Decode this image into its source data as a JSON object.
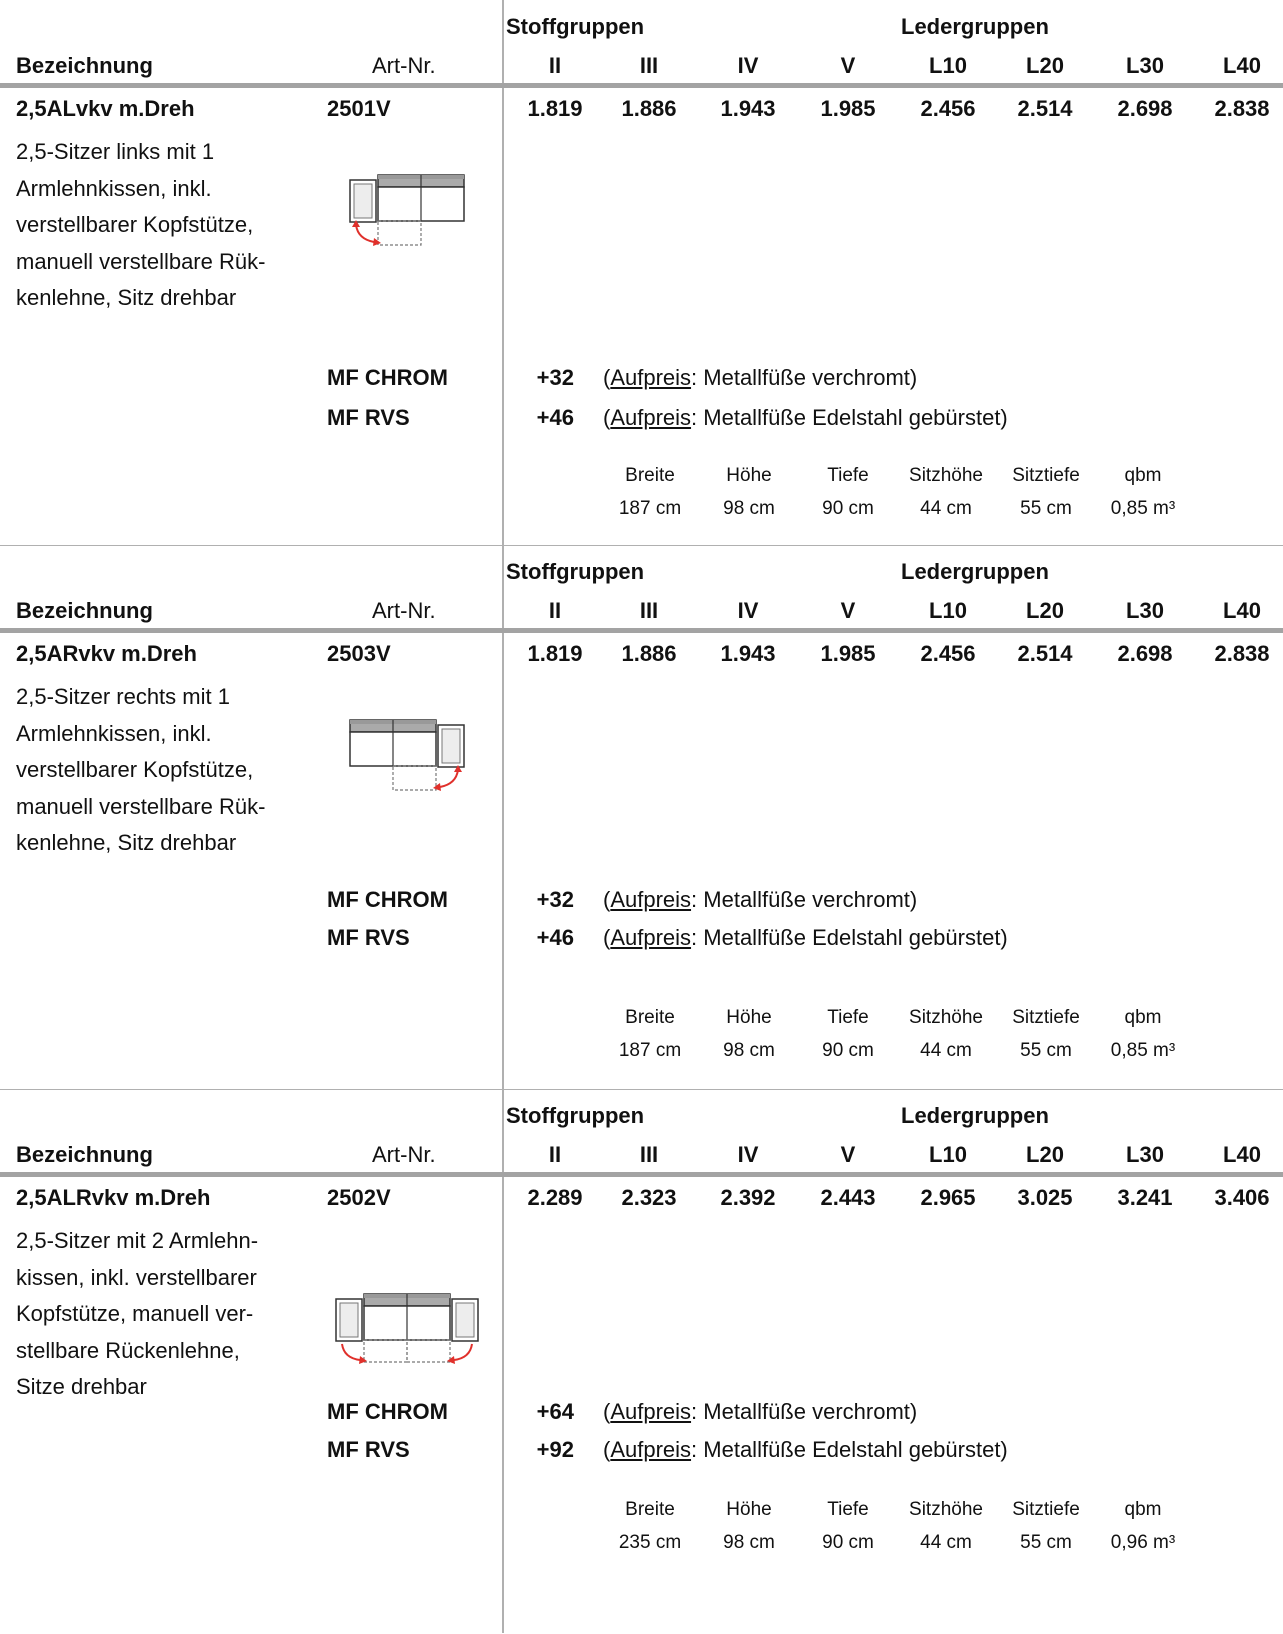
{
  "headers": {
    "stoff_label": "Stoffgruppen",
    "leder_label": "Ledergruppen",
    "bezeichnung": "Bezeichnung",
    "artnr": "Art-Nr.",
    "groups": [
      "II",
      "III",
      "IV",
      "V",
      "L10",
      "L20",
      "L30",
      "L40"
    ]
  },
  "dimension_labels": [
    "Breite",
    "Höhe",
    "Tiefe",
    "Sitzhöhe",
    "Sitztiefe",
    "qbm"
  ],
  "options_common": {
    "aufpreis": "Aufpreis",
    "open_paren": "(",
    "chrom_suffix": ": Metallfüße verchromt)",
    "rvs_suffix": ": Metallfüße Edelstahl gebürstet)"
  },
  "products": [
    {
      "name": "2,5ALvkv m.Dreh",
      "artnr": "2501V",
      "prices": [
        "1.819",
        "1.886",
        "1.943",
        "1.985",
        "2.456",
        "2.514",
        "2.698",
        "2.838"
      ],
      "description_lines": [
        "2,5-Sitzer links mit 1",
        "Armlehnkissen, inkl.",
        "verstellbarer Kopfstütze,",
        "manuell verstellbare Rük-",
        "kenlehne, Sitz drehbar"
      ],
      "icon": "sofa-left-armrest-swivel-icon",
      "options": [
        {
          "code": "MF CHROM",
          "price": "+32"
        },
        {
          "code": "MF RVS",
          "price": "+46"
        }
      ],
      "dimensions": [
        "187 cm",
        "98 cm",
        "90 cm",
        "44 cm",
        "55 cm",
        "0,85 m³"
      ]
    },
    {
      "name": "2,5ARvkv m.Dreh",
      "artnr": "2503V",
      "prices": [
        "1.819",
        "1.886",
        "1.943",
        "1.985",
        "2.456",
        "2.514",
        "2.698",
        "2.838"
      ],
      "description_lines": [
        "2,5-Sitzer rechts mit 1",
        "Armlehnkissen, inkl.",
        "verstellbarer Kopfstütze,",
        "manuell verstellbare Rük-",
        "kenlehne, Sitz drehbar"
      ],
      "icon": "sofa-right-armrest-swivel-icon",
      "options": [
        {
          "code": "MF CHROM",
          "price": "+32"
        },
        {
          "code": "MF RVS",
          "price": "+46"
        }
      ],
      "dimensions": [
        "187 cm",
        "98 cm",
        "90 cm",
        "44 cm",
        "55 cm",
        "0,85 m³"
      ]
    },
    {
      "name": "2,5ALRvkv m.Dreh",
      "artnr": "2502V",
      "prices": [
        "2.289",
        "2.323",
        "2.392",
        "2.443",
        "2.965",
        "3.025",
        "3.241",
        "3.406"
      ],
      "description_lines": [
        "2,5-Sitzer mit 2 Armlehn-",
        "kissen, inkl. verstellbarer",
        "Kopfstütze, manuell ver-",
        "stellbare Rückenlehne,",
        "Sitze drehbar"
      ],
      "icon": "sofa-both-armrests-swivel-icon",
      "options": [
        {
          "code": "MF CHROM",
          "price": "+64"
        },
        {
          "code": "MF RVS",
          "price": "+92"
        }
      ],
      "dimensions": [
        "235 cm",
        "98 cm",
        "90 cm",
        "44 cm",
        "55 cm",
        "0,96 m³"
      ]
    }
  ]
}
